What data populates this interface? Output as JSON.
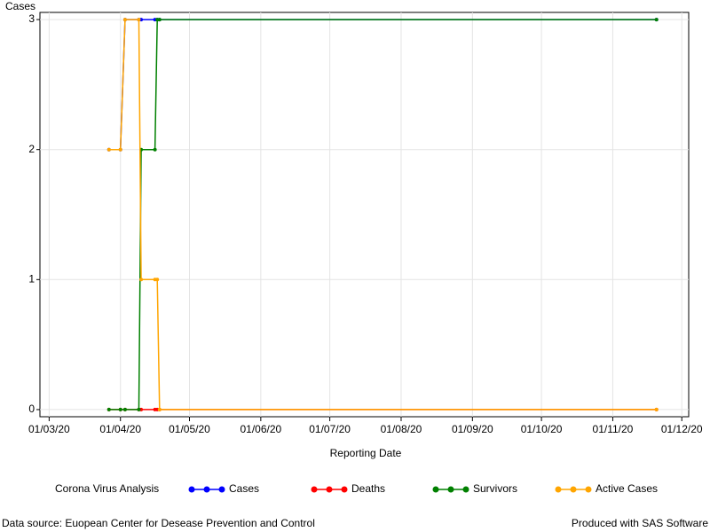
{
  "chart_data": {
    "type": "line",
    "y_label": "Cases",
    "x_label": "Reporting Date",
    "legend_title": "Corona Virus Analysis",
    "footnote_left": "Data source: Euopean Center for Desease Prevention and Control",
    "footnote_right": "Produced with SAS Software",
    "x": [
      "2020-03-27",
      "2020-04-01",
      "2020-04-03",
      "2020-04-09",
      "2020-04-10",
      "2020-04-16",
      "2020-04-17",
      "2020-04-18",
      "2020-11-20"
    ],
    "series": [
      {
        "name": "Cases",
        "color": "#0000ff",
        "values": [
          2,
          2,
          3,
          3,
          3,
          3,
          3,
          3,
          3
        ]
      },
      {
        "name": "Deaths",
        "color": "#ff0000",
        "values": [
          0,
          0,
          0,
          0,
          0,
          0,
          0,
          0,
          0
        ]
      },
      {
        "name": "Survivors",
        "color": "#008000",
        "values": [
          0,
          0,
          0,
          0,
          2,
          2,
          3,
          3,
          3
        ]
      },
      {
        "name": "Active Cases",
        "color": "#ffa500",
        "values": [
          2,
          2,
          3,
          3,
          1,
          1,
          1,
          0,
          0
        ]
      }
    ],
    "xlim": [
      "2020-02-26",
      "2020-12-04"
    ],
    "xticks": [
      {
        "value": "2020-03-01",
        "label": "01/03/20"
      },
      {
        "value": "2020-04-01",
        "label": "01/04/20"
      },
      {
        "value": "2020-05-01",
        "label": "01/05/20"
      },
      {
        "value": "2020-06-01",
        "label": "01/06/20"
      },
      {
        "value": "2020-07-01",
        "label": "01/07/20"
      },
      {
        "value": "2020-08-01",
        "label": "01/08/20"
      },
      {
        "value": "2020-09-01",
        "label": "01/09/20"
      },
      {
        "value": "2020-10-01",
        "label": "01/10/20"
      },
      {
        "value": "2020-11-01",
        "label": "01/11/20"
      },
      {
        "value": "2020-12-01",
        "label": "01/12/20"
      }
    ],
    "ylim": [
      -0.055,
      3.055
    ],
    "yticks": [
      0,
      1,
      2,
      3
    ],
    "grid": true
  }
}
